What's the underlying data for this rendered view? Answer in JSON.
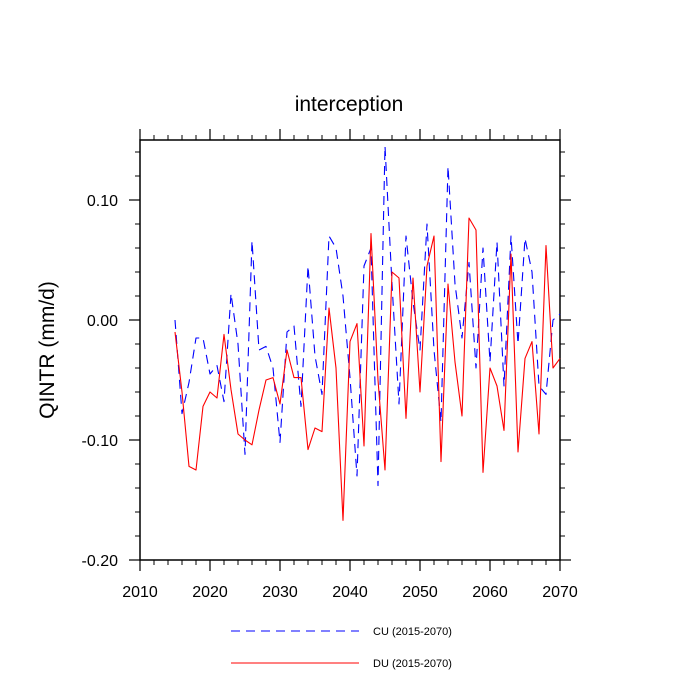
{
  "chart_data": {
    "type": "line",
    "title": "interception",
    "xlabel": "",
    "ylabel": "QINTR  (mm/d)",
    "xlim": [
      2010,
      2070
    ],
    "ylim": [
      -0.2,
      0.15
    ],
    "xticks": [
      2010,
      2020,
      2030,
      2040,
      2050,
      2060,
      2070
    ],
    "xtick_labels": [
      "2010",
      "2020",
      "2030",
      "2040",
      "2050",
      "2060",
      "2070"
    ],
    "yticks": [
      -0.2,
      -0.1,
      0.0,
      0.1
    ],
    "ytick_labels": [
      "-0.20",
      "-0.10",
      "0.00",
      "0.10"
    ],
    "grid": false,
    "legend_position": "bottom",
    "x": [
      2015,
      2016,
      2017,
      2018,
      2019,
      2020,
      2021,
      2022,
      2023,
      2024,
      2025,
      2026,
      2027,
      2028,
      2029,
      2030,
      2031,
      2032,
      2033,
      2034,
      2035,
      2036,
      2037,
      2038,
      2039,
      2040,
      2041,
      2042,
      2043,
      2044,
      2045,
      2046,
      2047,
      2048,
      2049,
      2050,
      2051,
      2052,
      2053,
      2054,
      2055,
      2056,
      2057,
      2058,
      2059,
      2060,
      2061,
      2062,
      2063,
      2064,
      2065,
      2066,
      2067,
      2068,
      2069,
      2070
    ],
    "series": [
      {
        "name": "CU (2015-2070)",
        "color": "#0000ff",
        "dash": "dashed",
        "values": [
          0.0,
          -0.078,
          -0.052,
          -0.015,
          -0.015,
          -0.045,
          -0.038,
          -0.068,
          0.022,
          -0.02,
          -0.112,
          0.066,
          -0.025,
          -0.022,
          -0.04,
          -0.102,
          -0.01,
          -0.005,
          -0.072,
          0.045,
          -0.03,
          -0.062,
          0.07,
          0.06,
          0.02,
          -0.048,
          -0.13,
          0.045,
          0.06,
          -0.138,
          0.145,
          0.03,
          -0.07,
          0.07,
          0.015,
          -0.025,
          0.08,
          -0.025,
          -0.085,
          0.128,
          0.03,
          -0.015,
          0.048,
          -0.04,
          0.06,
          -0.035,
          0.065,
          -0.055,
          0.07,
          -0.02,
          0.068,
          0.04,
          -0.055,
          -0.062,
          0.0,
          0.005
        ]
      },
      {
        "name": "DU (2015-2070)",
        "color": "#ff0000",
        "dash": "solid",
        "values": [
          -0.01,
          -0.06,
          -0.122,
          -0.125,
          -0.072,
          -0.06,
          -0.065,
          -0.012,
          -0.058,
          -0.095,
          -0.1,
          -0.104,
          -0.075,
          -0.05,
          -0.048,
          -0.07,
          -0.025,
          -0.048,
          -0.048,
          -0.108,
          -0.09,
          -0.093,
          0.01,
          -0.04,
          -0.167,
          -0.018,
          -0.003,
          -0.105,
          0.072,
          -0.05,
          -0.125,
          0.04,
          0.035,
          -0.082,
          0.035,
          -0.06,
          0.045,
          0.07,
          -0.118,
          0.03,
          -0.035,
          -0.08,
          0.085,
          0.075,
          -0.127,
          -0.04,
          -0.055,
          -0.092,
          0.055,
          -0.11,
          -0.032,
          -0.018,
          -0.095,
          0.062,
          -0.04,
          -0.032
        ]
      }
    ]
  }
}
